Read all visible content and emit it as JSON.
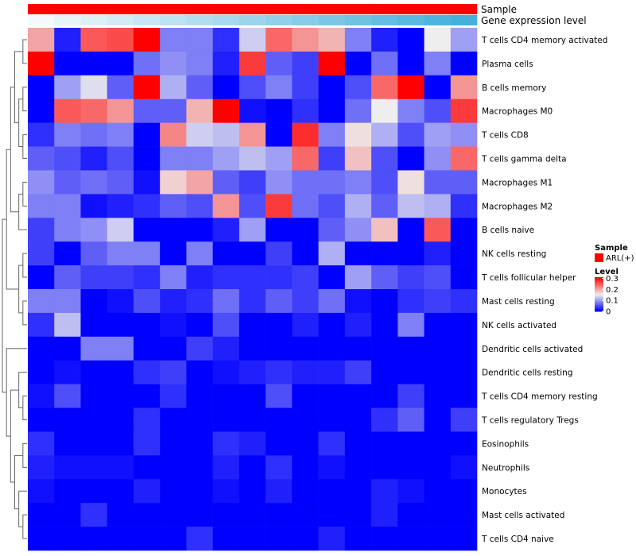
{
  "chart_data": {
    "type": "heatmap",
    "columns": 17,
    "annotations": [
      {
        "name": "Sample",
        "colors": [
          "#ff0000",
          "#ff0000",
          "#ff0000",
          "#ff0000",
          "#ff0000",
          "#ff0000",
          "#ff0000",
          "#ff0000",
          "#ff0000",
          "#ff0000",
          "#ff0000",
          "#ff0000",
          "#ff0000",
          "#ff0000",
          "#ff0000",
          "#ff0000",
          "#ff0000"
        ]
      },
      {
        "name": "Gene expression level",
        "colors": [
          "#f4f9fc",
          "#e9f4f9",
          "#def0f7",
          "#d3ebf5",
          "#c8e7f3",
          "#bde2f1",
          "#b2ddef",
          "#a7d9ed",
          "#9cd4eb",
          "#91d0e9",
          "#86cbe7",
          "#7bc6e5",
          "#70c2e3",
          "#65bde1",
          "#5ab9df",
          "#4fb4dd",
          "#44b0db"
        ]
      }
    ],
    "rows": [
      {
        "name": "T cells CD4 memory activated",
        "values": [
          0.2,
          0.02,
          0.25,
          0.26,
          0.31,
          0.08,
          0.08,
          0.03,
          0.13,
          0.24,
          0.21,
          0.19,
          0.08,
          0.02,
          0.0,
          0.15,
          0.1
        ]
      },
      {
        "name": "Plasma cells",
        "values": [
          0.31,
          0.0,
          0.0,
          0.0,
          0.07,
          0.09,
          0.08,
          0.02,
          0.27,
          0.06,
          0.04,
          0.31,
          0.0,
          0.07,
          0.0,
          0.08,
          0.0
        ]
      },
      {
        "name": "B cells memory",
        "values": [
          0.0,
          0.1,
          0.14,
          0.06,
          0.31,
          0.11,
          0.06,
          0.0,
          0.05,
          0.08,
          0.04,
          0.0,
          0.05,
          0.24,
          0.31,
          0.0,
          0.21
        ]
      },
      {
        "name": "Macrophages M0",
        "values": [
          0.0,
          0.25,
          0.24,
          0.21,
          0.06,
          0.06,
          0.19,
          0.31,
          0.01,
          0.0,
          0.03,
          0.0,
          0.07,
          0.15,
          0.08,
          0.05,
          0.27
        ]
      },
      {
        "name": "T cells CD8",
        "values": [
          0.03,
          0.08,
          0.07,
          0.08,
          0.0,
          0.22,
          0.13,
          0.12,
          0.21,
          0.0,
          0.28,
          0.08,
          0.16,
          0.11,
          0.05,
          0.1,
          0.09
        ]
      },
      {
        "name": "T cells gamma delta",
        "values": [
          0.06,
          0.05,
          0.02,
          0.05,
          0.0,
          0.08,
          0.08,
          0.1,
          0.12,
          0.1,
          0.24,
          0.04,
          0.18,
          0.05,
          0.0,
          0.09,
          0.24
        ]
      },
      {
        "name": "Macrophages M1",
        "values": [
          0.09,
          0.06,
          0.07,
          0.06,
          0.01,
          0.17,
          0.2,
          0.06,
          0.04,
          0.09,
          0.07,
          0.07,
          0.08,
          0.05,
          0.16,
          0.06,
          0.06
        ]
      },
      {
        "name": "Macrophages M2",
        "values": [
          0.08,
          0.08,
          0.01,
          0.02,
          0.03,
          0.06,
          0.05,
          0.21,
          0.05,
          0.27,
          0.07,
          0.05,
          0.11,
          0.06,
          0.12,
          0.11,
          0.03
        ]
      },
      {
        "name": "B cells naive",
        "values": [
          0.04,
          0.08,
          0.09,
          0.13,
          0.0,
          0.0,
          0.0,
          0.02,
          0.1,
          0.0,
          0.0,
          0.06,
          0.09,
          0.18,
          0.0,
          0.25,
          0.0
        ]
      },
      {
        "name": "NK cells resting",
        "values": [
          0.04,
          0.0,
          0.06,
          0.08,
          0.08,
          0.0,
          0.08,
          0.0,
          0.0,
          0.04,
          0.0,
          0.11,
          0.0,
          0.0,
          0.0,
          0.02,
          0.0
        ]
      },
      {
        "name": "T cells follicular helper",
        "values": [
          0.0,
          0.06,
          0.04,
          0.04,
          0.03,
          0.08,
          0.02,
          0.03,
          0.03,
          0.03,
          0.04,
          0.0,
          0.1,
          0.06,
          0.04,
          0.05,
          0.0
        ]
      },
      {
        "name": "Mast cells resting",
        "values": [
          0.08,
          0.08,
          0.0,
          0.01,
          0.05,
          0.02,
          0.03,
          0.07,
          0.03,
          0.06,
          0.04,
          0.07,
          0.01,
          0.0,
          0.03,
          0.04,
          0.03
        ]
      },
      {
        "name": "NK cells activated",
        "values": [
          0.03,
          0.12,
          0.0,
          0.0,
          0.0,
          0.01,
          0.0,
          0.05,
          0.0,
          0.0,
          0.02,
          0.0,
          0.02,
          0.0,
          0.08,
          0.0,
          0.0
        ]
      },
      {
        "name": "Dendritic cells activated",
        "values": [
          0.0,
          0.0,
          0.08,
          0.08,
          0.0,
          0.0,
          0.04,
          0.02,
          0.0,
          0.0,
          0.0,
          0.0,
          0.0,
          0.0,
          0.0,
          0.0,
          0.0
        ]
      },
      {
        "name": "Dendritic cells resting",
        "values": [
          0.0,
          0.01,
          0.0,
          0.0,
          0.03,
          0.04,
          0.0,
          0.01,
          0.02,
          0.03,
          0.02,
          0.02,
          0.04,
          0.0,
          0.0,
          0.0,
          0.0
        ]
      },
      {
        "name": "T cells CD4 memory resting",
        "values": [
          0.01,
          0.05,
          0.0,
          0.0,
          0.0,
          0.03,
          0.0,
          0.0,
          0.0,
          0.05,
          0.0,
          0.0,
          0.0,
          0.0,
          0.04,
          0.0,
          0.0
        ]
      },
      {
        "name": "T cells regulatory  Tregs",
        "values": [
          0.0,
          0.0,
          0.0,
          0.0,
          0.03,
          0.0,
          0.0,
          0.0,
          0.0,
          0.0,
          0.0,
          0.0,
          0.0,
          0.03,
          0.06,
          0.0,
          0.04
        ]
      },
      {
        "name": "Eosinophils",
        "values": [
          0.03,
          0.0,
          0.0,
          0.0,
          0.03,
          0.0,
          0.0,
          0.03,
          0.02,
          0.0,
          0.0,
          0.03,
          0.0,
          0.0,
          0.0,
          0.0,
          0.0
        ]
      },
      {
        "name": "Neutrophils",
        "values": [
          0.02,
          0.01,
          0.01,
          0.01,
          0.0,
          0.0,
          0.0,
          0.02,
          0.0,
          0.03,
          0.0,
          0.01,
          0.0,
          0.0,
          0.0,
          0.0,
          0.01
        ]
      },
      {
        "name": "Monocytes",
        "values": [
          0.01,
          0.0,
          0.0,
          0.0,
          0.02,
          0.0,
          0.0,
          0.01,
          0.0,
          0.02,
          0.0,
          0.0,
          0.0,
          0.02,
          0.01,
          0.0,
          0.0
        ]
      },
      {
        "name": "Mast cells activated",
        "values": [
          0.0,
          0.0,
          0.03,
          0.0,
          0.0,
          0.0,
          0.0,
          0.0,
          0.0,
          0.0,
          0.0,
          0.0,
          0.0,
          0.02,
          0.0,
          0.0,
          0.0
        ]
      },
      {
        "name": "T cells CD4 naive",
        "values": [
          0.0,
          0.0,
          0.0,
          0.0,
          0.0,
          0.0,
          0.03,
          0.0,
          0.0,
          0.0,
          0.0,
          0.02,
          0.0,
          0.0,
          0.0,
          0.0,
          0.0
        ]
      }
    ],
    "color_scale": {
      "min": 0,
      "mid": 0.15,
      "max": 0.31,
      "low_color": "#0000ff",
      "mid_color": "#eeeeee",
      "high_color": "#ff0000"
    },
    "legend": {
      "sample_title": "Sample",
      "sample_entry": "ARL(+)",
      "sample_color": "#ff0000",
      "level_title": "Level",
      "level_ticks": [
        {
          "value": 0.3,
          "label": "0.3"
        },
        {
          "value": 0.2,
          "label": "0.2"
        },
        {
          "value": 0.1,
          "label": "0.1"
        },
        {
          "value": 0,
          "label": "0"
        }
      ],
      "placement": "right"
    },
    "dendrogram": "rows"
  }
}
